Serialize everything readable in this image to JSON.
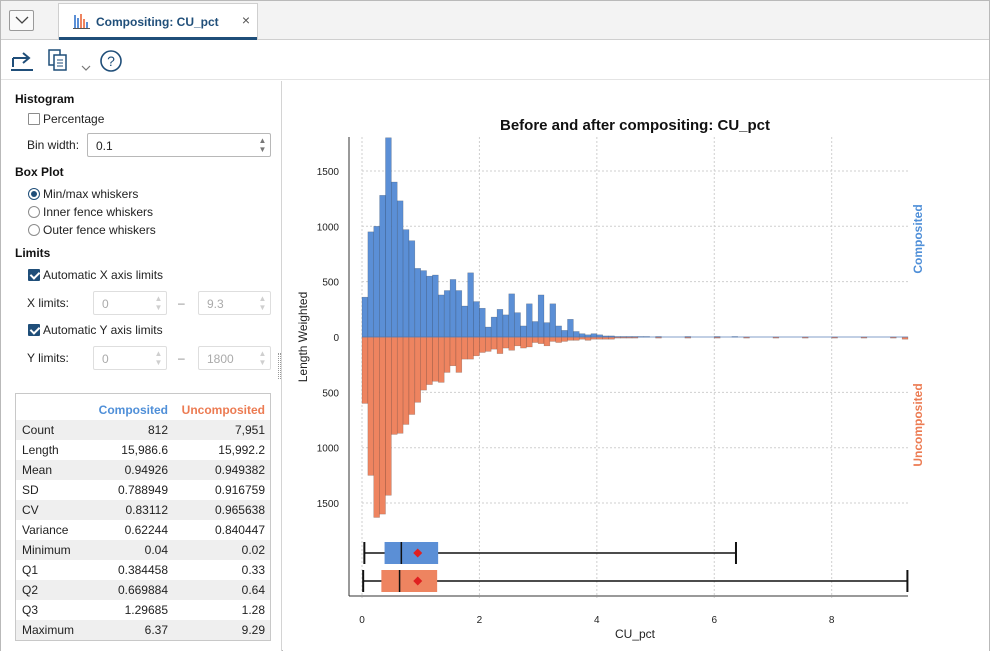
{
  "tab": {
    "title": "Compositing: CU_pct",
    "close_glyph": "×",
    "icon": "histogram-icon"
  },
  "toolbar": {
    "icons": [
      "export-icon",
      "copy-icon",
      "chevron-down-icon",
      "help-icon"
    ],
    "help_glyph": "?"
  },
  "histogram": {
    "title": "Histogram",
    "percentage_label": "Percentage",
    "percentage_checked": false,
    "bin_width_label": "Bin width:",
    "bin_width_value": "0.1"
  },
  "boxplot": {
    "title": "Box Plot",
    "options": [
      {
        "label": "Min/max whiskers",
        "checked": true
      },
      {
        "label": "Inner fence whiskers",
        "checked": false
      },
      {
        "label": "Outer fence whiskers",
        "checked": false
      }
    ]
  },
  "limits": {
    "title": "Limits",
    "auto_x_label": "Automatic X axis limits",
    "auto_x_checked": true,
    "x_label": "X limits:",
    "x_min": "0",
    "x_max": "9.3",
    "auto_y_label": "Automatic Y axis limits",
    "auto_y_checked": true,
    "y_label": "Y limits:",
    "y_min": "0",
    "y_max": "1800",
    "separator": "–"
  },
  "stats": {
    "headers": [
      "",
      "Composited",
      "Uncomposited"
    ],
    "rows": [
      [
        "Count",
        "812",
        "7,951"
      ],
      [
        "Length",
        "15,986.6",
        "15,992.2"
      ],
      [
        "Mean",
        "0.94926",
        "0.949382"
      ],
      [
        "SD",
        "0.788949",
        "0.916759"
      ],
      [
        "CV",
        "0.83112",
        "0.965638"
      ],
      [
        "Variance",
        "0.62244",
        "0.840447"
      ],
      [
        "Minimum",
        "0.04",
        "0.02"
      ],
      [
        "Q1",
        "0.384458",
        "0.33"
      ],
      [
        "Q2",
        "0.669884",
        "0.64"
      ],
      [
        "Q3",
        "1.29685",
        "1.28"
      ],
      [
        "Maximum",
        "6.37",
        "9.29"
      ]
    ]
  },
  "colors": {
    "composited": "#5b8fd6",
    "uncomposited": "#ee8460",
    "composited_label": "#4f8fd8",
    "uncomposited_label": "#ec7b52",
    "mean_marker": "#e02020",
    "accent": "#1f4e79"
  },
  "chart_data": {
    "type": "bar",
    "title": "Before and after compositing: CU_pct",
    "xlabel": "CU_pct",
    "ylabel": "Length Weighted",
    "xlim": [
      0,
      9.3
    ],
    "ylim": [
      -1800,
      1800
    ],
    "x_ticks": [
      0,
      2,
      4,
      6,
      8
    ],
    "y_ticks_top": [
      0,
      500,
      1000,
      1500
    ],
    "y_ticks_bottom": [
      500,
      1000,
      1500
    ],
    "grid": true,
    "bin_width": 0.1,
    "series": [
      {
        "name": "Composited",
        "direction": "up",
        "bin_starts": [
          0.0,
          0.1,
          0.2,
          0.3,
          0.4,
          0.5,
          0.6,
          0.7,
          0.8,
          0.9,
          1.0,
          1.1,
          1.2,
          1.3,
          1.4,
          1.5,
          1.6,
          1.7,
          1.8,
          1.9,
          2.0,
          2.1,
          2.2,
          2.3,
          2.4,
          2.5,
          2.6,
          2.7,
          2.8,
          2.9,
          3.0,
          3.1,
          3.2,
          3.3,
          3.4,
          3.5,
          3.6,
          3.7,
          3.8,
          3.9,
          4.0,
          4.1,
          4.2,
          4.3,
          4.4,
          4.5,
          4.6,
          4.7,
          4.8,
          5.0,
          5.5,
          6.0,
          6.3
        ],
        "values": [
          360,
          950,
          1000,
          1280,
          1800,
          1400,
          1230,
          970,
          870,
          620,
          600,
          550,
          560,
          380,
          420,
          520,
          420,
          280,
          580,
          320,
          260,
          90,
          180,
          250,
          200,
          390,
          220,
          100,
          300,
          140,
          380,
          130,
          300,
          100,
          60,
          160,
          50,
          30,
          20,
          30,
          20,
          10,
          10,
          5,
          5,
          5,
          5,
          5,
          5,
          5,
          5,
          5,
          5
        ]
      },
      {
        "name": "Uncomposited",
        "direction": "down",
        "bin_starts": [
          0.0,
          0.1,
          0.2,
          0.3,
          0.4,
          0.5,
          0.6,
          0.7,
          0.8,
          0.9,
          1.0,
          1.1,
          1.2,
          1.3,
          1.4,
          1.5,
          1.6,
          1.7,
          1.8,
          1.9,
          2.0,
          2.1,
          2.2,
          2.3,
          2.4,
          2.5,
          2.6,
          2.7,
          2.8,
          2.9,
          3.0,
          3.1,
          3.2,
          3.3,
          3.4,
          3.5,
          3.6,
          3.7,
          3.8,
          3.9,
          4.0,
          4.1,
          4.2,
          4.3,
          4.4,
          4.5,
          4.6,
          5.0,
          5.5,
          6.0,
          6.5,
          7.0,
          7.5,
          8.0,
          8.5,
          9.0,
          9.2
        ],
        "values": [
          600,
          1250,
          1630,
          1600,
          1430,
          880,
          870,
          790,
          700,
          590,
          480,
          430,
          400,
          410,
          320,
          260,
          320,
          200,
          200,
          170,
          140,
          130,
          110,
          150,
          100,
          120,
          80,
          100,
          90,
          50,
          60,
          80,
          40,
          50,
          40,
          30,
          30,
          20,
          30,
          20,
          20,
          20,
          20,
          10,
          10,
          10,
          10,
          10,
          10,
          10,
          10,
          10,
          10,
          10,
          10,
          10,
          20
        ]
      }
    ],
    "boxplots": [
      {
        "name": "Composited",
        "min": 0.04,
        "q1": 0.384458,
        "median": 0.669884,
        "q3": 1.29685,
        "max": 6.37,
        "mean": 0.94926
      },
      {
        "name": "Uncomposited",
        "min": 0.02,
        "q1": 0.33,
        "median": 0.64,
        "q3": 1.28,
        "max": 9.29,
        "mean": 0.949382
      }
    ]
  }
}
